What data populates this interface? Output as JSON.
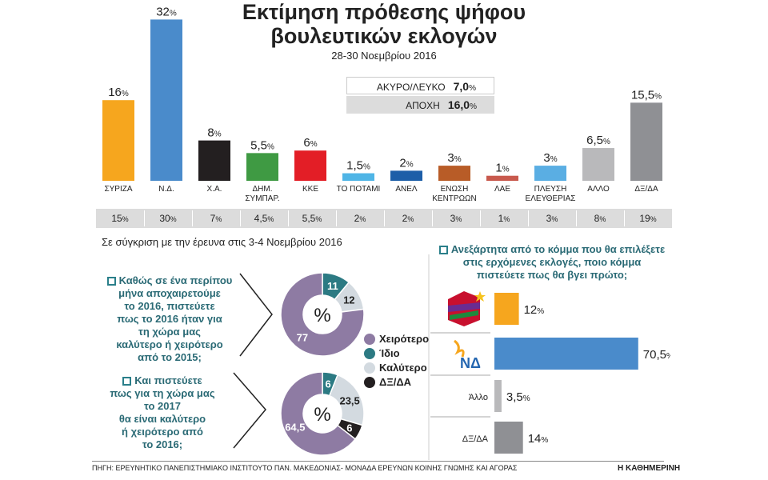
{
  "header": {
    "title_line1": "Εκτίμηση πρόθεσης ψήφου",
    "title_line2": "βουλευτικών εκλογών",
    "date": "28-30 Νοεμβρίου 2016"
  },
  "legend": {
    "invalid_label": "ΑΚΥΡΟ/ΛΕΥΚΟ",
    "invalid_value": "7,0",
    "abstain_label": "ΑΠΟΧΗ",
    "abstain_value": "16,0",
    "pct": "%"
  },
  "chart_data": [
    {
      "type": "bar",
      "title": "Εκτίμηση πρόθεσης ψήφου βουλευτικών εκλογών",
      "subtitle": "28-30 Νοεμβρίου 2016",
      "categories": [
        "ΣΥΡΙΖΑ",
        "Ν.Δ.",
        "Χ.Α.",
        "ΔΗΜ. ΣΥΜΠΑΡ.",
        "ΚΚΕ",
        "ΤΟ ΠΟΤΑΜΙ",
        "ΑΝΕΛ",
        "ΕΝΩΣΗ ΚΕΝΤΡΩΩΝ",
        "ΛΑΕ",
        "ΠΛΕΥΣΗ ΕΛΕΥΘΕΡΙΑΣ",
        "ΑΛΛΟ",
        "ΔΞ/ΔΑ"
      ],
      "category_lines": [
        [
          "ΣΥΡΙΖΑ"
        ],
        [
          "Ν.Δ."
        ],
        [
          "Χ.Α."
        ],
        [
          "ΔΗΜ.",
          "ΣΥΜΠΑΡ."
        ],
        [
          "ΚΚΕ"
        ],
        [
          "ΤΟ ΠΟΤΑΜΙ"
        ],
        [
          "ΑΝΕΛ"
        ],
        [
          "ΕΝΩΣΗ",
          "ΚΕΝΤΡΩΩΝ"
        ],
        [
          "ΛΑΕ"
        ],
        [
          "ΠΛΕΥΣΗ",
          "ΕΛΕΥΘΕΡΙΑΣ"
        ],
        [
          "ΑΛΛΟ"
        ],
        [
          "ΔΞ/ΔΑ"
        ]
      ],
      "values": [
        16,
        32,
        8,
        5.5,
        6,
        1.5,
        2,
        3,
        1,
        3,
        6.5,
        15.5
      ],
      "value_labels": [
        "16",
        "32",
        "8",
        "5,5",
        "6",
        "1,5",
        "2",
        "3",
        "1",
        "3",
        "6,5",
        "15,5"
      ],
      "colors": [
        "#f6a61e",
        "#4a8bcb",
        "#231f20",
        "#3f9a43",
        "#e31e26",
        "#4fb5e6",
        "#1d5ea8",
        "#b85c27",
        "#c8594d",
        "#5aaee3",
        "#b9b9bb",
        "#8f9094"
      ],
      "comparison_label": "Σε σύγκριση με την έρευνα στις 3-4 Νοεμβρίου 2016",
      "comparison_values": [
        "15",
        "30",
        "7",
        "4,5",
        "5,5",
        "2",
        "2",
        "3",
        "1",
        "3",
        "8",
        "19"
      ],
      "pct": "%"
    },
    {
      "type": "pie",
      "title": "Καθώς σε ένα περίπου μήνα αποχαιρετούμε το 2016, πιστεύετε πως το 2016 ήταν για τη χώρα μας καλύτερο ή χειρότερο από το 2015;",
      "labels": [
        "Χειρότερο",
        "Ίδιο",
        "Καλύτερο"
      ],
      "values": [
        77,
        11,
        12
      ],
      "value_labels": [
        "77",
        "11",
        "12"
      ],
      "colors": [
        "#8e7ba3",
        "#2c7a83",
        "#d3dae0"
      ],
      "center": "%"
    },
    {
      "type": "pie",
      "title": "Και πιστεύετε πως για τη χώρα μας το 2017 θα είναι καλύτερο ή χειρότερο από το 2016;",
      "labels": [
        "Χειρότερο",
        "Ίδιο",
        "Καλύτερο",
        "ΔΞ/ΔΑ"
      ],
      "values": [
        64.5,
        6,
        23.5,
        6
      ],
      "value_labels": [
        "64,5",
        "6",
        "23,5",
        "6"
      ],
      "colors": [
        "#8e7ba3",
        "#2c7a83",
        "#d3dae0",
        "#231f20"
      ],
      "center": "%"
    },
    {
      "type": "bar",
      "orientation": "horizontal",
      "title": "Ανεξάρτητα από το κόμμα που θα επιλέξετε στις ερχόμενες εκλογές, ποιο κόμμα πιστεύετε πως θα βγει πρώτο;",
      "categories": [
        "ΣΥΡΙΖΑ",
        "ΝΔ",
        "Άλλο",
        "ΔΞ/ΔΑ"
      ],
      "values": [
        12,
        70.5,
        3.5,
        14
      ],
      "value_labels": [
        "12",
        "70,5",
        "3,5",
        "14"
      ],
      "colors": [
        "#f6a61e",
        "#4a8bcb",
        "#b9b9bb",
        "#8f9094"
      ],
      "pct": "%"
    }
  ],
  "questions": {
    "q1_lines": [
      "Καθώς σε ένα περίπου",
      "μήνα αποχαιρετούμε",
      "το 2016, πιστεύετε",
      "πως το 2016 ήταν για",
      "τη χώρα μας",
      "καλύτερο ή χειρότερο",
      "από το 2015;"
    ],
    "q2_lines": [
      "Και πιστεύετε",
      "πως για τη χώρα μας",
      "το 2017",
      "θα είναι καλύτερο",
      "ή χειρότερο από",
      "το 2016;"
    ],
    "q3_lines": [
      "Ανεξάρτητα από το κόμμα που θα επιλέξετε",
      "στις ερχόμενες εκλογές, ποιο κόμμα",
      "πιστεύετε πως θα βγει πρώτο;"
    ]
  },
  "pie_legend": [
    {
      "label": "Χειρότερο",
      "color": "#8e7ba3"
    },
    {
      "label": "Ίδιο",
      "color": "#2c7a83"
    },
    {
      "label": "Καλύτερο",
      "color": "#d3dae0"
    },
    {
      "label": "ΔΞ/ΔΑ",
      "color": "#231f20"
    }
  ],
  "nd_logo_text": "ΝΔ",
  "footer": {
    "source": "ΠΗΓΗ: ΕΡΕΥΝΗΤΙΚΟ ΠΑΝΕΠΙΣΤΗΜΙΑΚΟ ΙΝΣΤΙΤΟΥΤΟ ΠΑΝ. ΜΑΚΕΔΟΝΙΑΣ- ΜΟΝΑΔΑ ΕΡΕΥΝΩΝ ΚΟΙΝΗΣ ΓΝΩΜΗΣ ΚΑΙ ΑΓΟΡΑΣ",
    "brand": "Η ΚΑΘΗΜΕΡΙΝΗ"
  }
}
